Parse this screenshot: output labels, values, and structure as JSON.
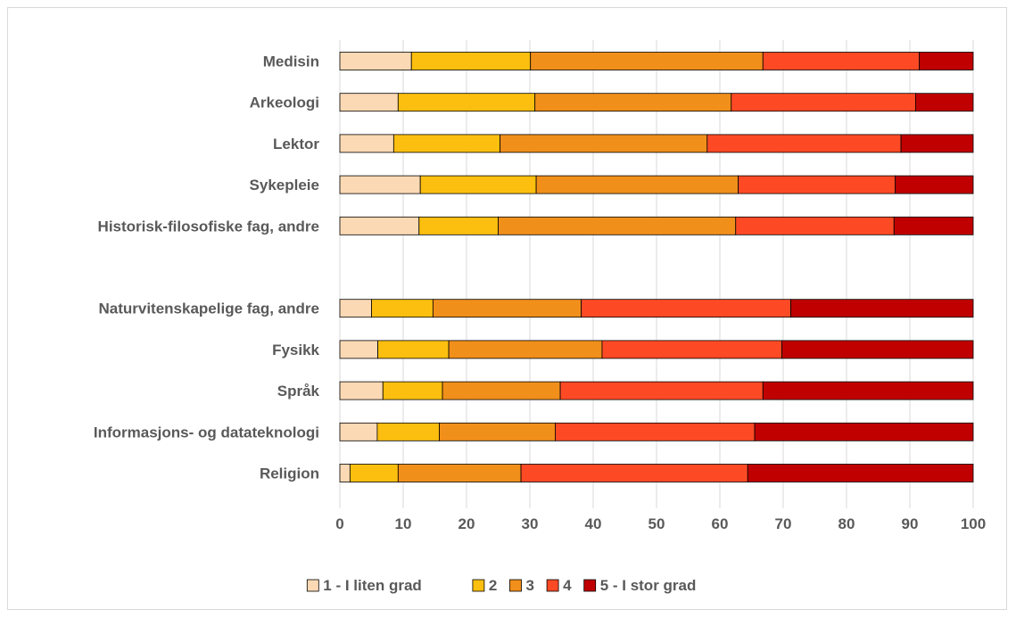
{
  "chart_data": {
    "type": "bar",
    "orientation": "horizontal",
    "stacked": true,
    "categories": [
      "Medisin",
      "Arkeologi",
      "Lektor",
      "Sykepleie",
      "Historisk-filosofiske fag, andre",
      "",
      "Naturvitenskapelige fag, andre",
      "Fysikk",
      "Språk",
      "Informasjons- og datateknologi",
      "Religion"
    ],
    "series": [
      {
        "name": "1 - I liten grad",
        "color": "#fbd9b4",
        "values": [
          11.3,
          9.2,
          8.5,
          12.7,
          12.5,
          null,
          5.0,
          6.0,
          6.8,
          5.9,
          1.6
        ]
      },
      {
        "name": "2",
        "color": "#fcbf0f",
        "values": [
          18.8,
          21.6,
          16.8,
          18.3,
          12.5,
          null,
          9.7,
          11.2,
          9.4,
          9.8,
          7.6
        ]
      },
      {
        "name": "3",
        "color": "#f18f1b",
        "values": [
          36.7,
          31.0,
          32.7,
          31.9,
          37.5,
          null,
          23.4,
          24.2,
          18.6,
          18.3,
          19.4
        ]
      },
      {
        "name": "4",
        "color": "#fd4a25",
        "values": [
          24.7,
          29.1,
          30.6,
          24.8,
          25.0,
          null,
          33.1,
          28.4,
          32.0,
          31.5,
          35.8
        ]
      },
      {
        "name": "5 - I stor grad",
        "color": "#c00000",
        "values": [
          8.5,
          9.1,
          11.4,
          12.3,
          12.5,
          null,
          28.8,
          30.2,
          33.2,
          34.5,
          35.6
        ]
      }
    ],
    "xlim": [
      0,
      100
    ],
    "xticks": [
      0,
      10,
      20,
      30,
      40,
      50,
      60,
      70,
      80,
      90,
      100
    ],
    "title": "",
    "xlabel": "",
    "ylabel": "",
    "grid": true,
    "legend": "bottom"
  }
}
